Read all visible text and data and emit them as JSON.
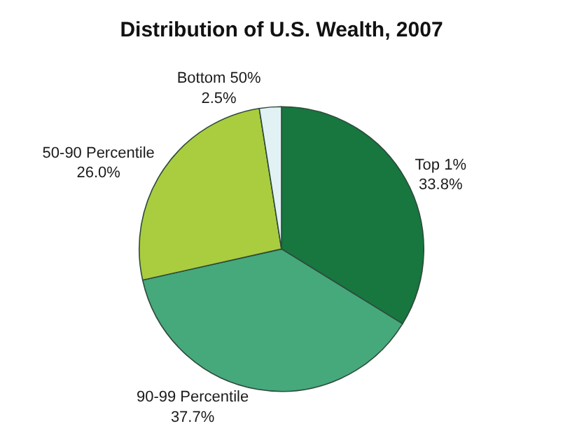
{
  "chart_data": {
    "type": "pie",
    "title": "Distribution of U.S. Wealth, 2007",
    "categories": [
      "Top 1%",
      "90-99 Percentile",
      "50-90 Percentile",
      "Bottom 50%"
    ],
    "values": [
      33.8,
      37.7,
      26.0,
      2.5
    ],
    "value_labels": [
      "33.8%",
      "37.7%",
      "26.0%",
      "2.5%"
    ],
    "colors": [
      "#17773f",
      "#45a97c",
      "#a9cd3e",
      "#e2f1f4"
    ],
    "legend": false
  }
}
